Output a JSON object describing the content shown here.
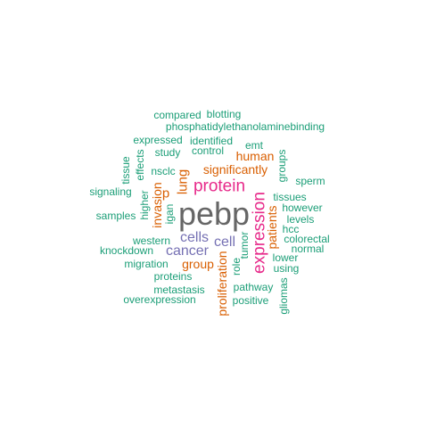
{
  "colors": {
    "teal": "#1b9e77",
    "orange": "#d95f02",
    "purple": "#7570b3",
    "magenta": "#e7298a",
    "gray": "#666666"
  },
  "words": [
    {
      "text": "pebp",
      "color": "gray"
    },
    {
      "text": "expression",
      "color": "magenta"
    },
    {
      "text": "protein",
      "color": "magenta"
    },
    {
      "text": "cancer",
      "color": "purple"
    },
    {
      "text": "cells",
      "color": "purple"
    },
    {
      "text": "cell",
      "color": "purple"
    },
    {
      "text": "significantly",
      "color": "orange"
    },
    {
      "text": "lung",
      "color": "orange"
    },
    {
      "text": "p",
      "color": "orange"
    },
    {
      "text": "invasion",
      "color": "orange"
    },
    {
      "text": "human",
      "color": "orange"
    },
    {
      "text": "patients",
      "color": "orange"
    },
    {
      "text": "group",
      "color": "orange"
    },
    {
      "text": "proliferation",
      "color": "orange"
    },
    {
      "text": "compared",
      "color": "teal"
    },
    {
      "text": "blotting",
      "color": "teal"
    },
    {
      "text": "phosphatidylethanolaminebinding",
      "color": "teal"
    },
    {
      "text": "expressed",
      "color": "teal"
    },
    {
      "text": "identified",
      "color": "teal"
    },
    {
      "text": "emt",
      "color": "teal"
    },
    {
      "text": "study",
      "color": "teal"
    },
    {
      "text": "control",
      "color": "teal"
    },
    {
      "text": "groups",
      "color": "teal"
    },
    {
      "text": "tissue",
      "color": "teal"
    },
    {
      "text": "effects",
      "color": "teal"
    },
    {
      "text": "nsclc",
      "color": "teal"
    },
    {
      "text": "sperm",
      "color": "teal"
    },
    {
      "text": "signaling",
      "color": "teal"
    },
    {
      "text": "higher",
      "color": "teal"
    },
    {
      "text": "igan",
      "color": "teal"
    },
    {
      "text": "tissues",
      "color": "teal"
    },
    {
      "text": "however",
      "color": "teal"
    },
    {
      "text": "samples",
      "color": "teal"
    },
    {
      "text": "levels",
      "color": "teal"
    },
    {
      "text": "hcc",
      "color": "teal"
    },
    {
      "text": "western",
      "color": "teal"
    },
    {
      "text": "colorectal",
      "color": "teal"
    },
    {
      "text": "tumor",
      "color": "teal"
    },
    {
      "text": "knockdown",
      "color": "teal"
    },
    {
      "text": "normal",
      "color": "teal"
    },
    {
      "text": "lower",
      "color": "teal"
    },
    {
      "text": "migration",
      "color": "teal"
    },
    {
      "text": "role",
      "color": "teal"
    },
    {
      "text": "using",
      "color": "teal"
    },
    {
      "text": "proteins",
      "color": "teal"
    },
    {
      "text": "pathway",
      "color": "teal"
    },
    {
      "text": "metastasis",
      "color": "teal"
    },
    {
      "text": "gliomas",
      "color": "teal"
    },
    {
      "text": "overexpression",
      "color": "teal"
    },
    {
      "text": "positive",
      "color": "teal"
    }
  ]
}
